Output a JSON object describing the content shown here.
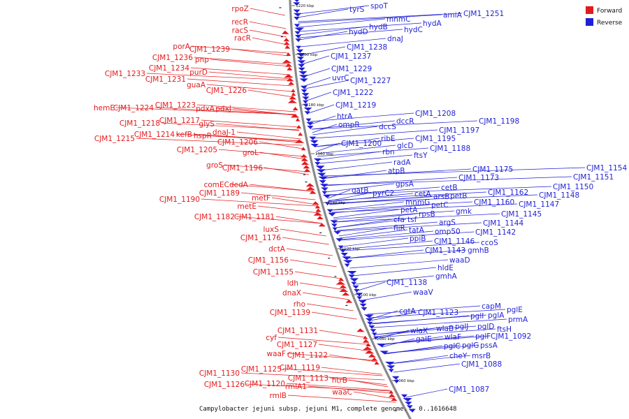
{
  "colors": {
    "forward": "#e31a1c",
    "reverse": "#1f1fd6",
    "backbone": "#8a8a8a"
  },
  "legend": [
    {
      "label": "Forward",
      "color": "#e31a1c"
    },
    {
      "label": "Reverse",
      "color": "#1f1fd6"
    }
  ],
  "caption": "Campylobacter jejuni subsp. jejuni M1, complete genome. - 0..1616648",
  "ticks": [
    {
      "kbp": 1220,
      "label": "1220 kbp"
    },
    {
      "kbp": 1200,
      "label": "1200 kbp"
    },
    {
      "kbp": 1180,
      "label": "1180 kbp"
    },
    {
      "kbp": 1160,
      "label": "1160 kbp"
    },
    {
      "kbp": 1140,
      "label": "1140 kbp"
    },
    {
      "kbp": 1120,
      "label": "1120 kbp"
    },
    {
      "kbp": 1100,
      "label": "1100 kbp"
    },
    {
      "kbp": 1080,
      "label": "1080 kbp"
    },
    {
      "kbp": 1060,
      "label": "1060 kbp"
    }
  ],
  "forward_labels": [
    "rpoZ",
    "recR",
    "racS",
    "racR",
    "porA",
    "CJM1_1239",
    "CJM1_1236",
    "pnp",
    "CJM1_1234",
    "purD",
    "CJM1_1233",
    "CJM1_1231",
    "guaA",
    "CJM1_1226",
    "CJM1_1223",
    "hemE",
    "CJM1_1224",
    "pdxA",
    "pdxJ",
    "CJM1_1218",
    "CJM1_1217",
    "glyS",
    "CJM1_1214",
    "kefB",
    "hspR",
    "dnaJ-1",
    "CJM1_1215",
    "CJM1_1206",
    "CJM1_1205",
    "groL",
    "groS",
    "CJM1_1196",
    "comEC",
    "dedA",
    "CJM1_1189",
    "CJM1_1190",
    "metF",
    "metE",
    "CJM1_1182",
    "CJM1_1181",
    "luxS",
    "CJM1_1176",
    "dctA",
    "CJM1_1156",
    "CJM1_1155",
    "ldh",
    "dnaX",
    "rho",
    "CJM1_1139",
    "CJM1_1131",
    "cyf",
    "CJM1_1127",
    "waaF",
    "CJM1_1122",
    "CJM1_1125",
    "CJM1_1119",
    "CJM1_1130",
    "CJM1_1113",
    "CJM1_1126",
    "CJM1_1120",
    "rmlA1",
    "htrB",
    "rmlB",
    "waaC"
  ],
  "reverse_labels": [
    "spoT",
    "tyrS",
    "amiA",
    "CJM1_1251",
    "mnmC",
    "hydA",
    "hydB",
    "hydC",
    "hydD",
    "dnaJ",
    "CJM1_1238",
    "CJM1_1237",
    "CJM1_1229",
    "uvrC",
    "CJM1_1227",
    "CJM1_1222",
    "CJM1_1219",
    "htrA",
    "CJM1_1208",
    "ompR",
    "dccR",
    "dccS",
    "CJM1_1198",
    "CJM1_1197",
    "ribE",
    "CJM1_1200",
    "CJM1_1195",
    "glcD",
    "rbn",
    "CJM1_1188",
    "ftsY",
    "radA",
    "atpB",
    "CJM1_1175",
    "CJM1_1154",
    "CJM1_1151",
    "CJM1_1173",
    "gpsA",
    "gatB",
    "cetB",
    "pyrC2",
    "cetA",
    "arsB",
    "petB",
    "CJM1_1150",
    "CJM1_1162",
    "CJM1_1148",
    "mnmG",
    "petC",
    "CJM1_1160",
    "CJM1_1147",
    "gmk",
    "petA",
    "CJM1_1145",
    "rpsB",
    "CJM1_1144",
    "cfa",
    "tsf",
    "argS",
    "fliR",
    "tatA",
    "omp50",
    "CJM1_1142",
    "ppiB",
    "CJM1_1146",
    "ccoS",
    "CJM1_1143",
    "gmhB",
    "waaD",
    "hldE",
    "gmhA",
    "CJM1_1138",
    "waaV",
    "cgtA",
    "CJM1_1123",
    "capM",
    "pglE",
    "pglI",
    "pglA",
    "prmA",
    "wlaX",
    "wlaB",
    "pglJ",
    "pglD",
    "ftsH",
    "galE",
    "wlaF",
    "pglF",
    "CJM1_1092",
    "pglC",
    "pglG",
    "pssA",
    "cheY",
    "msrB",
    "CJM1_1088",
    "CJM1_1087"
  ]
}
